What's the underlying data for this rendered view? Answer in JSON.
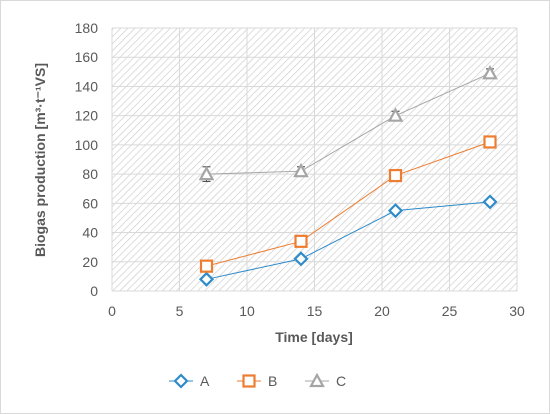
{
  "chart_data": {
    "type": "scatter",
    "xlabel": "Time [days]",
    "ylabel": "Biogas production [m³·t⁻¹VS]",
    "xlim": [
      0,
      30
    ],
    "ylim": [
      0,
      180
    ],
    "xticks": [
      0,
      5,
      10,
      15,
      20,
      25,
      30
    ],
    "yticks": [
      0,
      20,
      40,
      60,
      80,
      100,
      120,
      140,
      160,
      180
    ],
    "grid": true,
    "background_pattern": "diagonal-hatch",
    "legend_position": "bottom",
    "series": [
      {
        "name": "A",
        "marker": "diamond",
        "color": "#2E8BC9",
        "x": [
          7,
          14,
          21,
          28
        ],
        "y": [
          8,
          22,
          55,
          61
        ],
        "err": [
          1,
          1.5,
          1.5,
          1.5
        ]
      },
      {
        "name": "B",
        "marker": "square",
        "color": "#ED7D31",
        "x": [
          7,
          14,
          21,
          28
        ],
        "y": [
          17,
          34,
          79,
          102
        ],
        "err": [
          1,
          1.5,
          1,
          1.5
        ]
      },
      {
        "name": "C",
        "marker": "triangle",
        "color": "#A5A5A5",
        "x": [
          7,
          14,
          21,
          28
        ],
        "y": [
          80,
          82,
          120,
          149
        ],
        "err": [
          5,
          3,
          3,
          3
        ]
      }
    ]
  }
}
